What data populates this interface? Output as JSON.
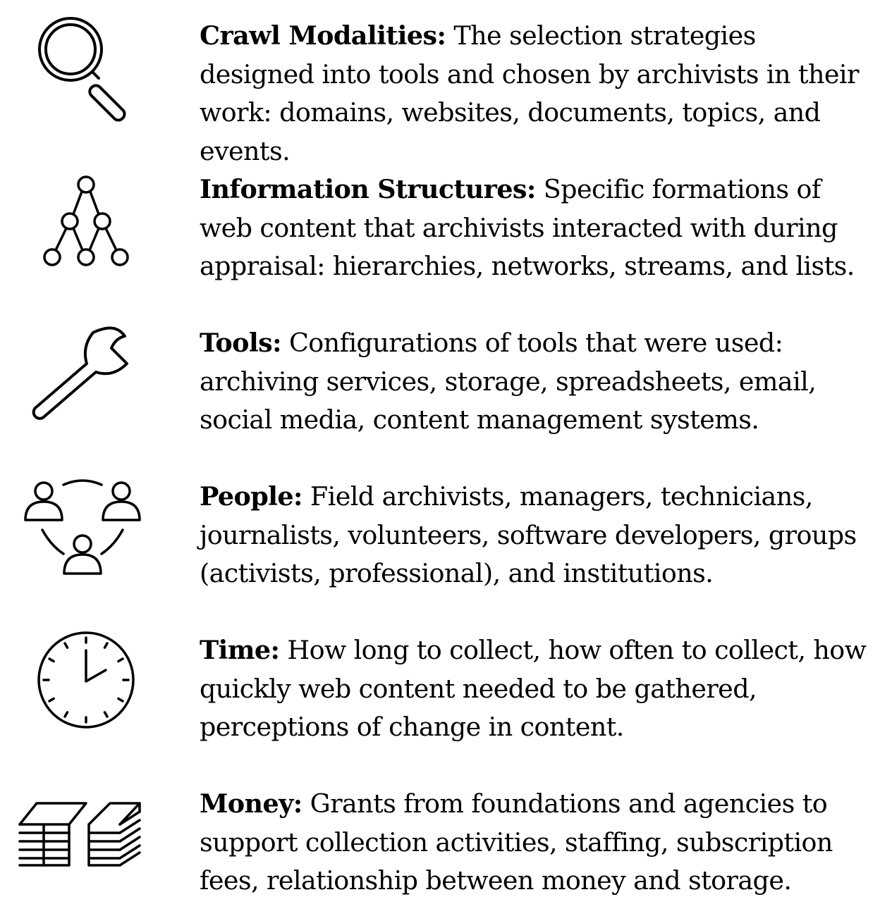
{
  "items": [
    {
      "icon": "magnifying-glass-icon",
      "label": "Crawl Modalities:",
      "description": " The selection strategies designed into tools and chosen by archivists in their work: domains, websites, documents, topics, and events."
    },
    {
      "icon": "hierarchy-tree-icon",
      "label": "Information Structures:",
      "description": " Specific formations of web content that archivists interacted with during appraisal: hierarchies, networks, streams, and lists."
    },
    {
      "icon": "wrench-icon",
      "label": "Tools:",
      "description": " Configurations of tools that were used: archiving services, storage, spreadsheets, email, social media, content management systems."
    },
    {
      "icon": "people-group-icon",
      "label": "People:",
      "description": " Field archivists, managers, technicians, journalists, volunteers, software developers, groups (activists, professional), and institutions."
    },
    {
      "icon": "clock-icon",
      "label": "Time:",
      "description": " How long to collect, how often to collect, how quickly web content needed to be gathered, perceptions of change in content."
    },
    {
      "icon": "money-stack-icon",
      "label": "Money:",
      "description": " Grants from foundations and agencies to support collection activities, staffing, subscription fees, relationship between money and storage."
    }
  ]
}
